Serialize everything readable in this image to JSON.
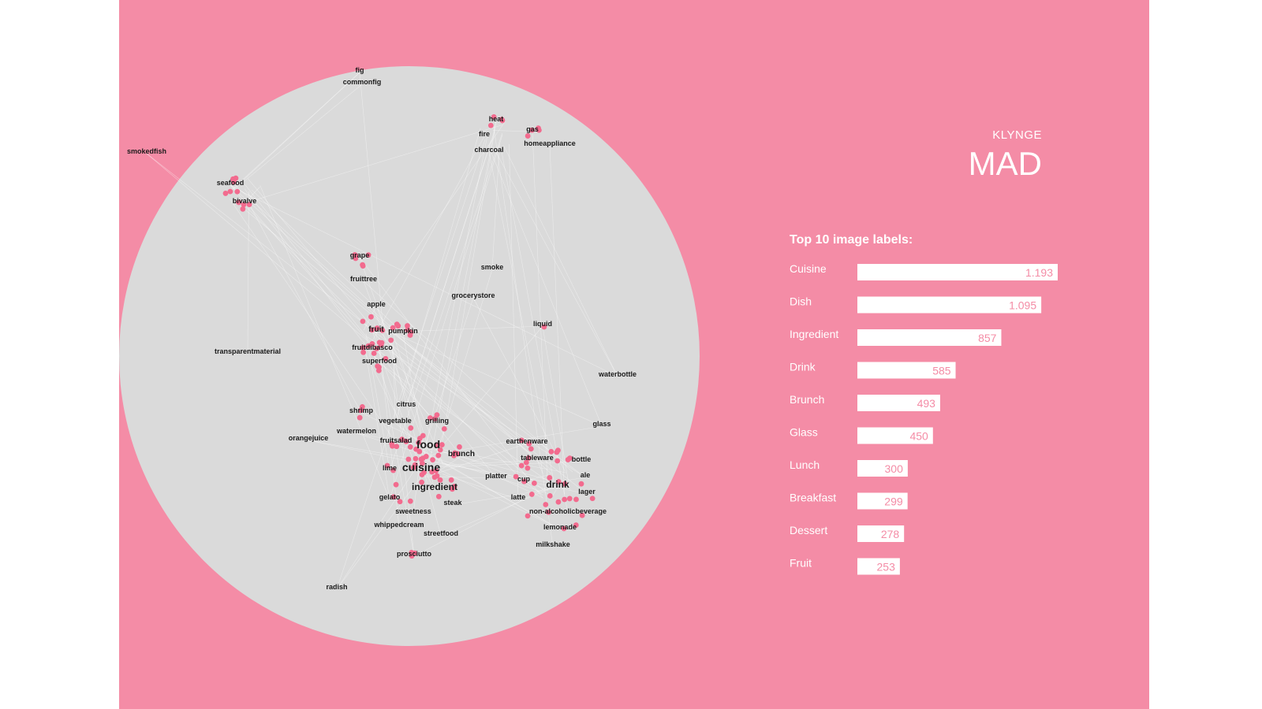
{
  "header": {
    "kicker": "KLYNGE",
    "title": "MAD"
  },
  "colors": {
    "background": "#f48ca6",
    "circle": "#dadada",
    "node": "#f26b8e",
    "edge": "#ffffff",
    "bar": "#ffffff",
    "bar_text": "#f48ca6",
    "label_text": "#ffffff"
  },
  "network": {
    "labels": [
      "fig",
      "commonfig",
      "smokedfish",
      "heat",
      "fire",
      "charcoal",
      "gas",
      "homeappliance",
      "seafood",
      "bivalve",
      "grape",
      "fruittree",
      "smoke",
      "apple",
      "grocerystore",
      "fruit",
      "pumpkin",
      "liquid",
      "fruitdibasco",
      "superfood",
      "transparentmaterial",
      "waterbottle",
      "shrimp",
      "citrus",
      "vegetable",
      "grilling",
      "glass",
      "watermelon",
      "orangejuice",
      "fruitsalad",
      "food",
      "brunch",
      "earthenware",
      "tableware",
      "bottle",
      "cuisine",
      "lime",
      "platter",
      "cup",
      "drink",
      "ale",
      "ingredient",
      "lager",
      "latte",
      "gelato",
      "steak",
      "non-alcoholicbeverage",
      "sweetness",
      "whippedcream",
      "lemonade",
      "streetfood",
      "milkshake",
      "prosciutto",
      "radish"
    ]
  },
  "chart_data": {
    "type": "bar",
    "title": "Top 10 image labels:",
    "categories": [
      "Cuisine",
      "Dish",
      "Ingredient",
      "Drink",
      "Brunch",
      "Glass",
      "Lunch",
      "Breakfast",
      "Dessert",
      "Fruit"
    ],
    "values": [
      1193,
      1095,
      857,
      585,
      493,
      450,
      300,
      299,
      278,
      253
    ],
    "value_labels": [
      "1.193",
      "1.095",
      "857",
      "585",
      "493",
      "450",
      "300",
      "299",
      "278",
      "253"
    ],
    "orientation": "horizontal",
    "xlim": [
      0,
      1193
    ]
  }
}
